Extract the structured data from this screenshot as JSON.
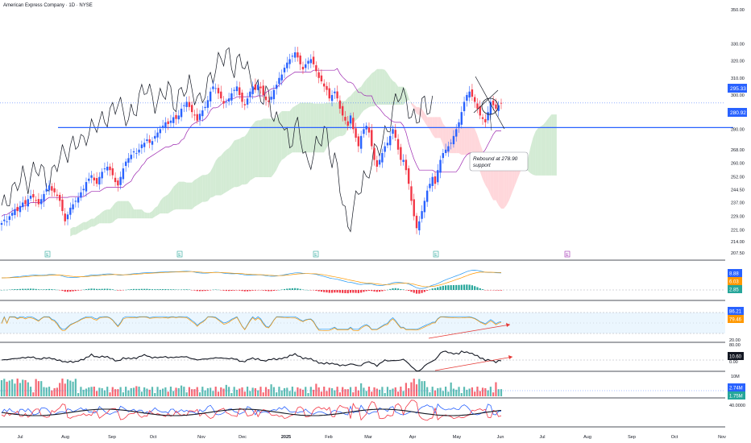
{
  "header": {
    "title": "American Express Company · 1D · NYSE"
  },
  "chart_data": {
    "type": "candlestick",
    "price_axis_ticks": [
      "350.00",
      "330.00",
      "320.00",
      "310.00",
      "300.00",
      "290.00",
      "280.00",
      "268.00",
      "260.00",
      "252.00",
      "244.50",
      "237.00",
      "229.00",
      "221.00",
      "214.00",
      "207.50"
    ],
    "price_axis_values": [
      350,
      330,
      320,
      310,
      300,
      290,
      280,
      268,
      260,
      252,
      244.5,
      237,
      229,
      221,
      214,
      207.5
    ],
    "time_axis": [
      "Jul",
      "Aug",
      "Sep",
      "Oct",
      "Nov",
      "Dec",
      "2025",
      "Feb",
      "Mar",
      "Apr",
      "May",
      "Jun",
      "Jul",
      "Aug",
      "Sep",
      "Oct",
      "Nov"
    ],
    "current_price_label": "295.33",
    "support_label": "280.92",
    "support_price": 280.92,
    "annotation": "Rebound at 278.90\nsupport",
    "annotation_line1": "Rebound at 278.90",
    "annotation_line2": "support",
    "earnings_markers": [
      "E",
      "E",
      "E",
      "E",
      "E"
    ],
    "closes": [
      225,
      227,
      226,
      229,
      231,
      233,
      232,
      235,
      237,
      236,
      239,
      241,
      240,
      238,
      236,
      239,
      242,
      245,
      247,
      244,
      243,
      241,
      238,
      232,
      226,
      230,
      234,
      236,
      238,
      240,
      243,
      245,
      249,
      251,
      253,
      250,
      248,
      252,
      255,
      257,
      258,
      256,
      253,
      249,
      247,
      252,
      257,
      261,
      263,
      265,
      267,
      266,
      268,
      271,
      272,
      274,
      272,
      273,
      276,
      278,
      280,
      282,
      284,
      283,
      285,
      287,
      286,
      288,
      292,
      294,
      296,
      293,
      290,
      288,
      285,
      289,
      291,
      293,
      297,
      302,
      305,
      304,
      301,
      298,
      295,
      296,
      298,
      301,
      303,
      305,
      300,
      296,
      294,
      298,
      302,
      305,
      303,
      306,
      304,
      300,
      297,
      296,
      299,
      303,
      306,
      310,
      312,
      316,
      319,
      321,
      323,
      325,
      322,
      318,
      315,
      318,
      320,
      321,
      318,
      314,
      310,
      308,
      305,
      303,
      298,
      300,
      302,
      298,
      292,
      288,
      285,
      282,
      288,
      280,
      275,
      270,
      276,
      280,
      282,
      278,
      270,
      262,
      258,
      262,
      266,
      270,
      272,
      276,
      280,
      275,
      268,
      262,
      262,
      256,
      248,
      238,
      229,
      222,
      226,
      232,
      238,
      244,
      248,
      252,
      248,
      256,
      262,
      266,
      268,
      270,
      272,
      276,
      280,
      284,
      290,
      296,
      300,
      302,
      299,
      296,
      292,
      288,
      286,
      284,
      290,
      296,
      294,
      292,
      294,
      295
    ],
    "indicators": {
      "macd": {
        "values": [
          "8.88",
          "6.03",
          "2.85"
        ]
      },
      "stochastic_rsi": {
        "values": [
          "86.21",
          "79.46"
        ],
        "levels": [
          "80.00",
          "20.00"
        ]
      },
      "momentum": {
        "values": [
          "10.60"
        ],
        "levels": [
          "0.00"
        ]
      },
      "volume": {
        "values": [
          "2.74M",
          "1.75M"
        ],
        "scale": "10M"
      },
      "dmi": {
        "values": [
          "40.0000"
        ]
      }
    }
  },
  "colors": {
    "up": "#2962ff",
    "down": "#f23645",
    "support_line": "#2962ff",
    "cloud_bull": "#c8e6c9",
    "cloud_bear": "#ffcdd2",
    "kijun": "#9c27b0",
    "lagging": "#131722",
    "macd_line": "#2196f3",
    "signal_line": "#ff9800",
    "hist_pos": "#26a69a",
    "hist_neg": "#f23645",
    "price_tag_bg": "#2962ff",
    "trend_arrow": "#e53935",
    "earnings": "#26a69a"
  }
}
